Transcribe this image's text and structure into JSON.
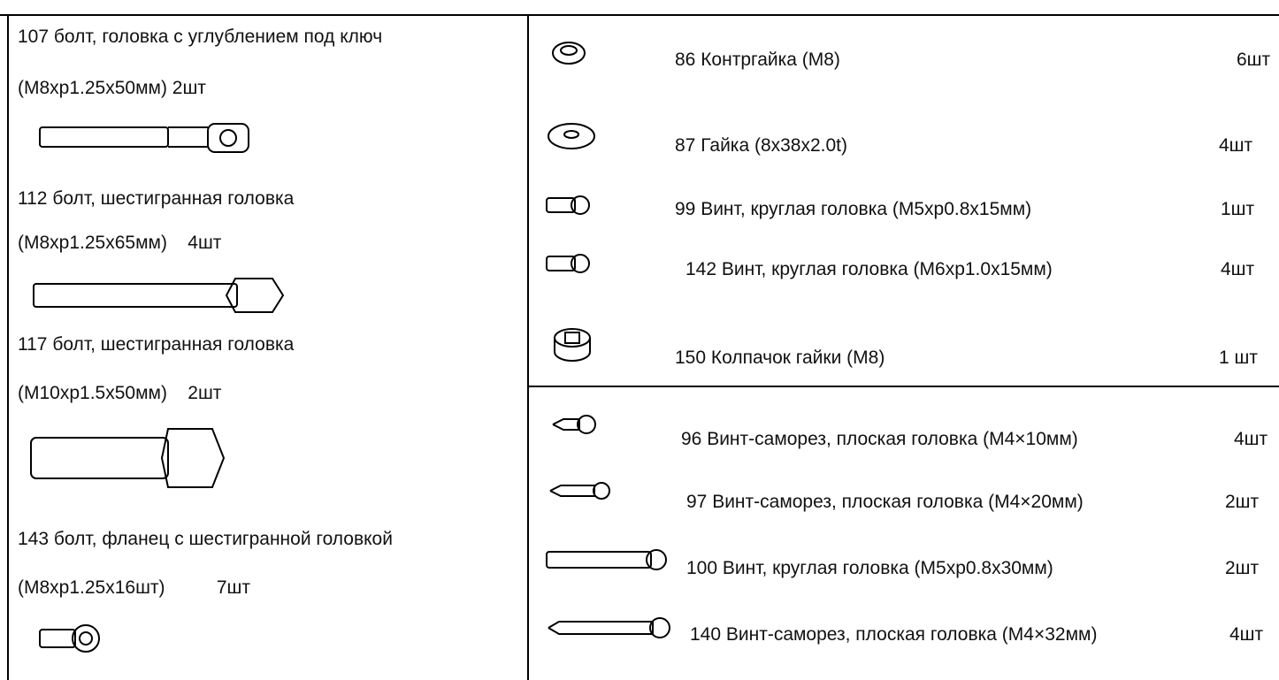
{
  "left_items": [
    {
      "line1": "107 болт, головка с углублением под ключ",
      "line2": "(M8xp1.25x50мм) 2шт"
    },
    {
      "line1": "112 болт, шестигранная головка",
      "line2": "(M8xp1.25x65мм)    4шт"
    },
    {
      "line1": "117 болт, шестигранная головка",
      "line2": "(M10xp1.5x50мм)    2шт"
    },
    {
      "line1": "143 болт, фланец с шестигранной головкой",
      "line2": "(M8xp1.25x16шт)          7шт"
    }
  ],
  "right_items": [
    {
      "name": "86 Контргайка (M8)",
      "qty": "6шт"
    },
    {
      "name": "87 Гайка (8x38x2.0t)",
      "qty": "4шт"
    },
    {
      "name": "99 Винт, круглая головка (M5xp0.8x15мм)",
      "qty": "1шт"
    },
    {
      "name": "142 Винт, круглая головка (M6xp1.0x15мм)",
      "qty": "4шт"
    },
    {
      "name": "150 Колпачок гайки (M8)",
      "qty": "1 шт"
    },
    {
      "name": "96 Винт-саморез, плоская головка (M4×10мм)",
      "qty": "4шт"
    },
    {
      "name": "97 Винт-саморез, плоская головка (M4×20мм)",
      "qty": "2шт"
    },
    {
      "name": "100 Винт, круглая головка (M5xp0.8x30мм)",
      "qty": "2шт"
    },
    {
      "name": "140 Винт-саморез, плоская головка (M4×32мм)",
      "qty": "4шт"
    }
  ]
}
